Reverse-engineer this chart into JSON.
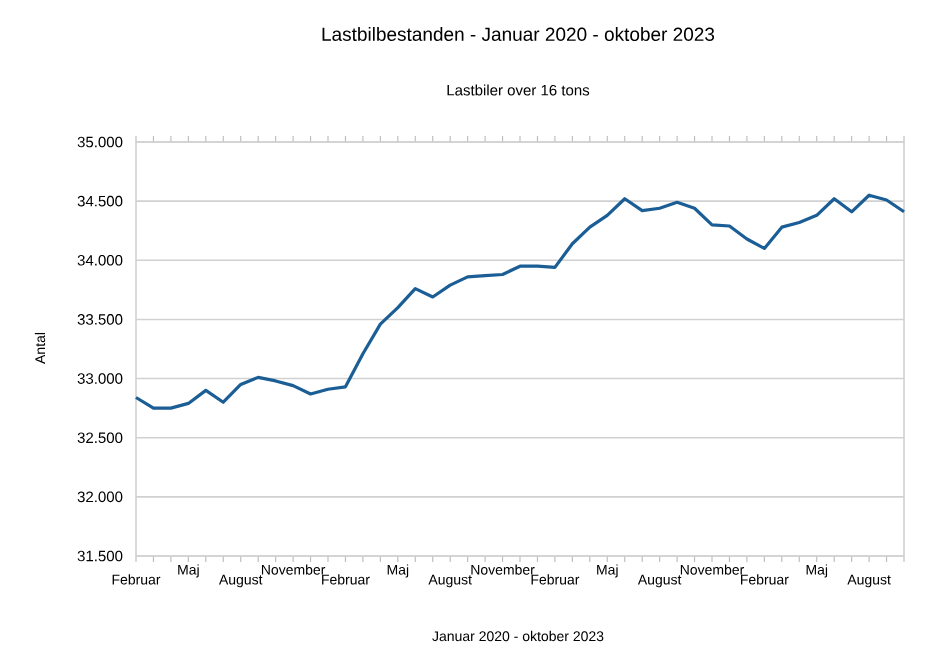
{
  "chart_data": {
    "type": "line",
    "title": "Lastbilbestanden - Januar 2020 - oktober 2023",
    "subtitle": "Lastbiler over 16 tons",
    "xlabel": "Januar 2020 - oktober 2023",
    "ylabel": "Antal",
    "categories": [
      "Februar",
      null,
      null,
      "Maj",
      null,
      null,
      "August",
      null,
      null,
      "November",
      null,
      null,
      "Februar",
      null,
      null,
      "Maj",
      null,
      null,
      "August",
      null,
      null,
      "November",
      null,
      null,
      "Februar",
      null,
      null,
      "Maj",
      null,
      null,
      "August",
      null,
      null,
      "November",
      null,
      null,
      "Februar",
      null,
      null,
      "Maj",
      null,
      null,
      "August",
      null,
      null
    ],
    "series": [
      {
        "color": "#1b5e96",
        "values": [
          32840,
          32750,
          32750,
          32790,
          32900,
          32800,
          32950,
          33010,
          32980,
          32940,
          32870,
          32910,
          32930,
          33210,
          33460,
          33600,
          33760,
          33690,
          33790,
          33860,
          33870,
          33880,
          33950,
          33950,
          33940,
          34140,
          34280,
          34380,
          34520,
          34420,
          34440,
          34490,
          34440,
          34300,
          34290,
          34180,
          34100,
          34280,
          34320,
          34380,
          34520,
          34410,
          34550,
          34510,
          34410
        ]
      }
    ],
    "ylim": [
      31500,
      35000
    ],
    "yticks": [
      {
        "value": 31500,
        "label": "31.500"
      },
      {
        "value": 32000,
        "label": "32.000"
      },
      {
        "value": 32500,
        "label": "32.500"
      },
      {
        "value": 33000,
        "label": "33.000"
      },
      {
        "value": 33500,
        "label": "33.500"
      },
      {
        "value": 34000,
        "label": "34.000"
      },
      {
        "value": 34500,
        "label": "34.500"
      },
      {
        "value": 35000,
        "label": "35.000"
      }
    ],
    "grid": "y",
    "line_style": "solid",
    "marker": "none"
  }
}
